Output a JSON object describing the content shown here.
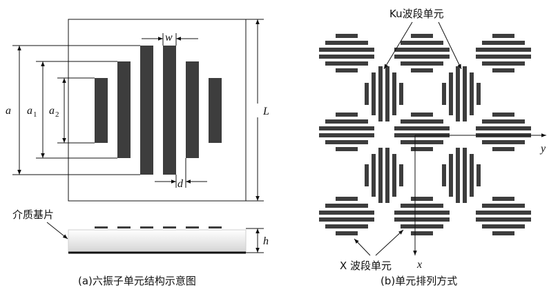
{
  "left_panel": {
    "caption": "(a)六振子单元结构示意图",
    "dim_labels": {
      "a": "a",
      "a1": "a",
      "a1_sub": "1",
      "a2": "a",
      "a2_sub": "2",
      "w": "w",
      "d": "d",
      "L": "L",
      "h": "h"
    },
    "substrate_label": "介质基片"
  },
  "right_panel": {
    "caption": "(b)单元排列方式",
    "ku_label": "Ku波段单元",
    "x_band_label": "X 波段单元",
    "axis_x": "x",
    "axis_y": "y"
  },
  "colors": {
    "bar": "#3d3d3d",
    "line": "#111111"
  }
}
